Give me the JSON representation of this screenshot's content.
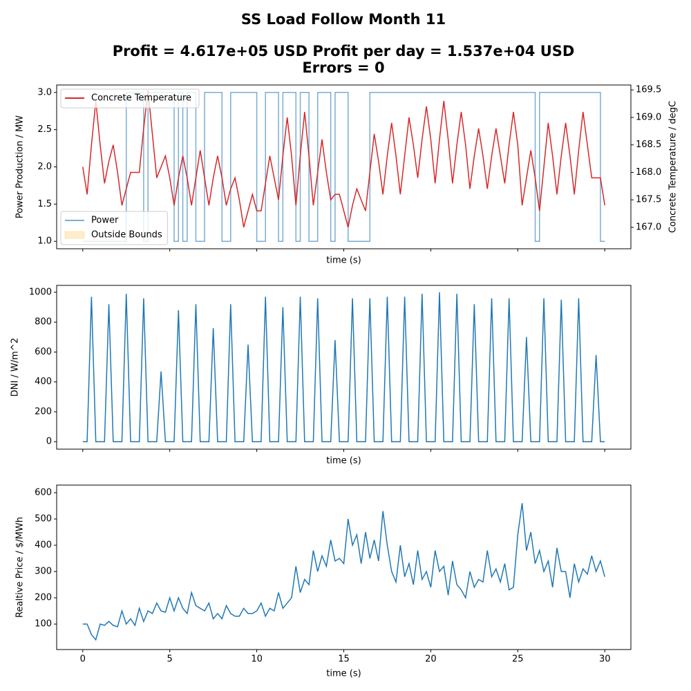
{
  "suptitle": [
    "SS Load Follow Month 11",
    "Profit = 4.617e+05 USD  Profit per day = 1.537e+04 USD",
    "Errors = 0"
  ],
  "chart_data": [
    {
      "type": "line",
      "xlabel": "time (s)",
      "ylabel": "Power Production / MW",
      "y2label": "Concrete Temperature / degC",
      "xlim": [
        -1.5,
        31.5
      ],
      "xticks": [
        0,
        5,
        10,
        15,
        20,
        25,
        30
      ],
      "show_xtick_labels": false,
      "ylim": [
        0.9,
        3.1
      ],
      "yticks": [
        {
          "value": 1,
          "label": "1.0"
        },
        1.5,
        {
          "value": 2,
          "label": "2.0"
        },
        2.5,
        {
          "value": 3,
          "label": "3.0"
        }
      ],
      "y2lim": [
        166.61,
        169.59
      ],
      "y2ticks": [
        {
          "value": 167,
          "label": "167.0"
        },
        167.5,
        {
          "value": 168,
          "label": "168.0"
        },
        168.5,
        {
          "value": 169,
          "label": "169.0"
        },
        169.5
      ],
      "x": [
        0,
        0.25,
        0.5,
        0.75,
        1,
        1.25,
        1.5,
        1.75,
        2,
        2.25,
        2.5,
        2.75,
        3,
        3.25,
        3.5,
        3.75,
        4,
        4.25,
        4.5,
        4.75,
        5,
        5.25,
        5.5,
        5.75,
        6,
        6.25,
        6.5,
        6.75,
        7,
        7.25,
        7.5,
        7.75,
        8,
        8.25,
        8.5,
        8.75,
        9,
        9.25,
        9.5,
        9.75,
        10,
        10.25,
        10.5,
        10.75,
        11,
        11.25,
        11.5,
        11.75,
        12,
        12.25,
        12.5,
        12.75,
        13,
        13.25,
        13.5,
        13.75,
        14,
        14.25,
        14.5,
        14.75,
        15,
        15.25,
        15.5,
        15.75,
        16,
        16.25,
        16.5,
        16.75,
        17,
        17.25,
        17.5,
        17.75,
        18,
        18.25,
        18.5,
        18.75,
        19,
        19.25,
        19.5,
        19.75,
        20,
        20.25,
        20.5,
        20.75,
        21,
        21.25,
        21.5,
        21.75,
        22,
        22.25,
        22.5,
        22.75,
        23,
        23.25,
        23.5,
        23.75,
        24,
        24.25,
        24.5,
        24.75,
        25,
        25.25,
        25.5,
        25.75,
        26,
        26.25,
        26.5,
        26.75,
        27,
        27.25,
        27.5,
        27.75,
        28,
        28.25,
        28.5,
        28.75,
        29,
        29.25,
        29.5,
        29.75,
        30
      ],
      "series": [
        {
          "name": "Power",
          "color": "#1f77b4",
          "alpha": 0.6,
          "drawstyle": "steps-post",
          "legend_loc": "lower left",
          "values": [
            1,
            1,
            1,
            1,
            1,
            1,
            1,
            1,
            1,
            1,
            3,
            3,
            3,
            3,
            1,
            3,
            3,
            3,
            3,
            3,
            3,
            1,
            3,
            1,
            3,
            3,
            1,
            1,
            3,
            3,
            3,
            3,
            1,
            1,
            3,
            3,
            3,
            3,
            3,
            3,
            1,
            1,
            3,
            3,
            3,
            1,
            3,
            3,
            3,
            1,
            3,
            3,
            1,
            1,
            3,
            3,
            3,
            1,
            3,
            3,
            3,
            1,
            1,
            1,
            1,
            1,
            3,
            3,
            3,
            3,
            3,
            3,
            3,
            3,
            3,
            3,
            3,
            3,
            3,
            3,
            3,
            3,
            3,
            3,
            3,
            3,
            3,
            3,
            3,
            3,
            3,
            3,
            3,
            3,
            3,
            3,
            3,
            3,
            3,
            3,
            3,
            3,
            3,
            3,
            1,
            3,
            3,
            3,
            3,
            3,
            3,
            3,
            3,
            3,
            3,
            3,
            3,
            3,
            3,
            1,
            1
          ]
        },
        {
          "name": "Concrete Temperature",
          "color": "#d62728",
          "alpha": 1,
          "axis": "y2",
          "legend_loc": "upper left",
          "values": [
            168.1,
            167.6,
            168.5,
            169.3,
            168.5,
            167.8,
            168.2,
            168.5,
            168.0,
            167.4,
            167.7,
            168.0,
            168.0,
            168.0,
            168.8,
            169.5,
            168.7,
            167.9,
            168.1,
            168.3,
            167.9,
            167.4,
            167.9,
            168.3,
            167.9,
            167.4,
            167.9,
            168.4,
            167.9,
            167.4,
            167.9,
            168.3,
            167.9,
            167.4,
            167.7,
            167.9,
            167.5,
            167.0,
            167.3,
            167.6,
            167.3,
            167.3,
            167.8,
            168.3,
            167.9,
            167.5,
            168.3,
            169.0,
            168.3,
            167.4,
            168.3,
            169.1,
            168.3,
            167.4,
            168.0,
            168.6,
            168.0,
            167.5,
            167.6,
            167.6,
            167.3,
            167.0,
            167.4,
            167.7,
            167.5,
            167.3,
            168.0,
            168.7,
            168.2,
            167.6,
            168.3,
            168.9,
            168.3,
            167.6,
            168.3,
            169.0,
            168.5,
            167.9,
            168.6,
            169.2,
            168.6,
            167.8,
            168.6,
            169.3,
            168.6,
            167.8,
            168.5,
            169.1,
            168.5,
            167.7,
            168.3,
            168.8,
            168.3,
            167.7,
            168.3,
            168.8,
            168.3,
            167.8,
            168.5,
            169.1,
            168.5,
            167.4,
            167.9,
            168.4,
            167.9,
            167.3,
            168.1,
            168.9,
            168.3,
            167.6,
            168.3,
            168.9,
            168.3,
            167.6,
            168.4,
            169.1,
            168.5,
            167.9,
            167.9,
            167.9,
            167.4
          ]
        }
      ],
      "patches": [
        {
          "name": "Outside Bounds",
          "color": "orange",
          "alpha": 0.2,
          "legend_loc": "lower left"
        }
      ]
    },
    {
      "type": "line",
      "xlabel": "time (s)",
      "ylabel": "DNI / W/m^2",
      "xlim": [
        -1.5,
        31.5
      ],
      "xticks": [
        0,
        5,
        10,
        15,
        20,
        25,
        30
      ],
      "show_xtick_labels": false,
      "ylim": [
        -50,
        1046
      ],
      "yticks": [
        0,
        200,
        400,
        600,
        800,
        1000
      ],
      "x": [
        0,
        0.25,
        0.5,
        0.75,
        1,
        1.25,
        1.5,
        1.75,
        2,
        2.25,
        2.5,
        2.75,
        3,
        3.25,
        3.5,
        3.75,
        4,
        4.25,
        4.5,
        4.75,
        5,
        5.25,
        5.5,
        5.75,
        6,
        6.25,
        6.5,
        6.75,
        7,
        7.25,
        7.5,
        7.75,
        8,
        8.25,
        8.5,
        8.75,
        9,
        9.25,
        9.5,
        9.75,
        10,
        10.25,
        10.5,
        10.75,
        11,
        11.25,
        11.5,
        11.75,
        12,
        12.25,
        12.5,
        12.75,
        13,
        13.25,
        13.5,
        13.75,
        14,
        14.25,
        14.5,
        14.75,
        15,
        15.25,
        15.5,
        15.75,
        16,
        16.25,
        16.5,
        16.75,
        17,
        17.25,
        17.5,
        17.75,
        18,
        18.25,
        18.5,
        18.75,
        19,
        19.25,
        19.5,
        19.75,
        20,
        20.25,
        20.5,
        20.75,
        21,
        21.25,
        21.5,
        21.75,
        22,
        22.25,
        22.5,
        22.75,
        23,
        23.25,
        23.5,
        23.75,
        24,
        24.25,
        24.5,
        24.75,
        25,
        25.25,
        25.5,
        25.75,
        26,
        26.25,
        26.5,
        26.75,
        27,
        27.25,
        27.5,
        27.75,
        28,
        28.25,
        28.5,
        28.75,
        29,
        29.25,
        29.5,
        29.75,
        30
      ],
      "series": [
        {
          "name": "DNI",
          "color": "#1f77b4",
          "alpha": 1,
          "values": [
            0,
            0,
            970,
            0,
            0,
            0,
            920,
            0,
            0,
            0,
            990,
            0,
            0,
            0,
            960,
            0,
            0,
            0,
            470,
            0,
            0,
            0,
            880,
            0,
            0,
            0,
            920,
            0,
            0,
            0,
            760,
            0,
            0,
            0,
            920,
            0,
            0,
            0,
            650,
            0,
            0,
            0,
            970,
            0,
            0,
            0,
            900,
            0,
            0,
            0,
            970,
            0,
            0,
            0,
            960,
            0,
            0,
            0,
            680,
            0,
            0,
            0,
            960,
            0,
            0,
            0,
            960,
            0,
            0,
            0,
            970,
            0,
            0,
            0,
            970,
            0,
            0,
            0,
            990,
            0,
            0,
            0,
            1000,
            0,
            0,
            0,
            990,
            0,
            0,
            0,
            920,
            0,
            0,
            0,
            960,
            0,
            0,
            0,
            960,
            0,
            0,
            0,
            700,
            0,
            0,
            0,
            960,
            0,
            0,
            0,
            950,
            0,
            0,
            0,
            960,
            0,
            0,
            0,
            580,
            0,
            0
          ]
        }
      ]
    },
    {
      "type": "line",
      "xlabel": "time (s)",
      "ylabel": "Realtive Price / $/MWh",
      "xlim": [
        -1.5,
        31.5
      ],
      "xticks": [
        0,
        5,
        10,
        15,
        20,
        25,
        30
      ],
      "show_xtick_labels": true,
      "ylim": [
        3,
        629
      ],
      "yticks": [
        100,
        200,
        300,
        400,
        500,
        600
      ],
      "x": [
        0,
        0.25,
        0.5,
        0.75,
        1,
        1.25,
        1.5,
        1.75,
        2,
        2.25,
        2.5,
        2.75,
        3,
        3.25,
        3.5,
        3.75,
        4,
        4.25,
        4.5,
        4.75,
        5,
        5.25,
        5.5,
        5.75,
        6,
        6.25,
        6.5,
        6.75,
        7,
        7.25,
        7.5,
        7.75,
        8,
        8.25,
        8.5,
        8.75,
        9,
        9.25,
        9.5,
        9.75,
        10,
        10.25,
        10.5,
        10.75,
        11,
        11.25,
        11.5,
        11.75,
        12,
        12.25,
        12.5,
        12.75,
        13,
        13.25,
        13.5,
        13.75,
        14,
        14.25,
        14.5,
        14.75,
        15,
        15.25,
        15.5,
        15.75,
        16,
        16.25,
        16.5,
        16.75,
        17,
        17.25,
        17.5,
        17.75,
        18,
        18.25,
        18.5,
        18.75,
        19,
        19.25,
        19.5,
        19.75,
        20,
        20.25,
        20.5,
        20.75,
        21,
        21.25,
        21.5,
        21.75,
        22,
        22.25,
        22.5,
        22.75,
        23,
        23.25,
        23.5,
        23.75,
        24,
        24.25,
        24.5,
        24.75,
        25,
        25.25,
        25.5,
        25.75,
        26,
        26.25,
        26.5,
        26.75,
        27,
        27.25,
        27.5,
        27.75,
        28,
        28.25,
        28.5,
        28.75,
        29,
        29.25,
        29.5,
        29.75,
        30
      ],
      "series": [
        {
          "name": "Price",
          "color": "#1f77b4",
          "alpha": 1,
          "values": [
            100,
            100,
            60,
            40,
            100,
            95,
            110,
            95,
            90,
            150,
            100,
            120,
            95,
            160,
            110,
            150,
            140,
            180,
            150,
            145,
            200,
            150,
            200,
            160,
            140,
            220,
            170,
            160,
            150,
            180,
            120,
            140,
            120,
            170,
            140,
            130,
            130,
            160,
            140,
            140,
            150,
            180,
            130,
            160,
            150,
            220,
            160,
            180,
            200,
            320,
            220,
            270,
            250,
            380,
            300,
            360,
            320,
            420,
            340,
            350,
            330,
            500,
            400,
            440,
            330,
            450,
            350,
            420,
            340,
            530,
            400,
            300,
            260,
            400,
            280,
            330,
            250,
            380,
            270,
            300,
            240,
            380,
            300,
            320,
            210,
            340,
            250,
            230,
            200,
            300,
            240,
            270,
            260,
            380,
            280,
            310,
            260,
            330,
            230,
            240,
            440,
            560,
            380,
            450,
            330,
            380,
            300,
            340,
            240,
            390,
            300,
            300,
            200,
            330,
            260,
            310,
            290,
            360,
            300,
            340,
            280
          ]
        }
      ]
    }
  ]
}
